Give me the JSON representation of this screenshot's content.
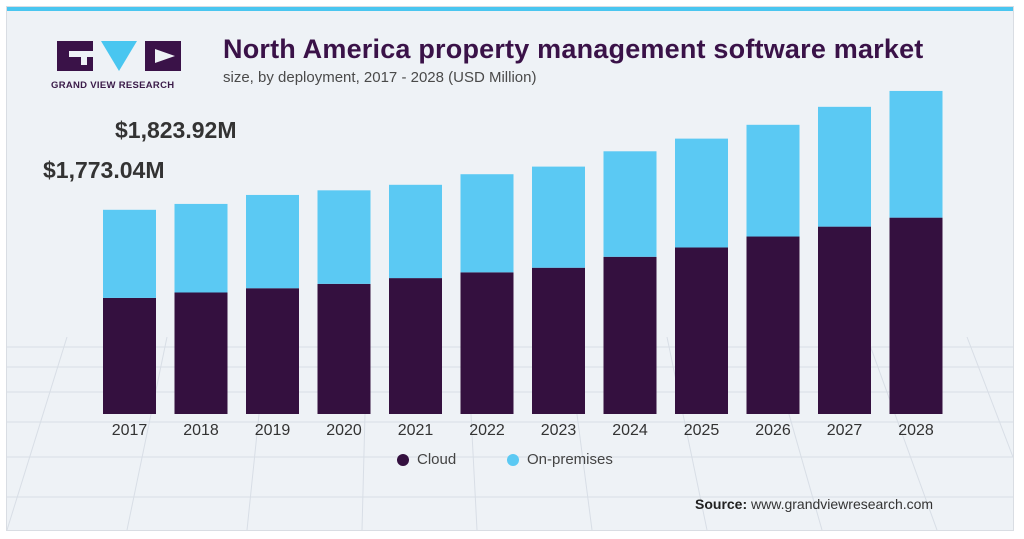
{
  "header": {
    "brand": "GRAND VIEW RESEARCH",
    "title": "North America property management software market",
    "subtitle": "size, by deployment, 2017 - 2028 (USD Million)"
  },
  "callouts": {
    "value_2018": "$1,823.92M",
    "value_2017": "$1,773.04M"
  },
  "legend": {
    "cloud": "Cloud",
    "on_premises": "On-premises"
  },
  "source": {
    "label": "Source:",
    "url": "www.grandviewresearch.com"
  },
  "colors": {
    "cloud": "#34103f",
    "on_premises": "#5bc9f3",
    "accent": "#49c6f0",
    "brand": "#3a1248"
  },
  "chart_data": {
    "type": "bar",
    "stacked": true,
    "title": "North America property management software market",
    "subtitle": "size, by deployment, 2017 - 2028 (USD Million)",
    "categories": [
      "2017",
      "2018",
      "2019",
      "2020",
      "2021",
      "2022",
      "2023",
      "2024",
      "2025",
      "2026",
      "2027",
      "2028"
    ],
    "series": [
      {
        "name": "Cloud",
        "values": [
          1008,
          1055,
          1092,
          1130,
          1180,
          1230,
          1270,
          1365,
          1446,
          1541,
          1627,
          1705
        ]
      },
      {
        "name": "On-premises",
        "values": [
          765,
          769,
          810,
          812,
          810,
          852,
          878,
          916,
          945,
          970,
          1040,
          1100
        ]
      }
    ],
    "annotations": [
      {
        "category": "2017",
        "text": "$1,773.04M"
      },
      {
        "category": "2018",
        "text": "$1,823.92M"
      }
    ],
    "ylim": [
      0,
      2900
    ],
    "grid": false,
    "legend_position": "bottom"
  }
}
